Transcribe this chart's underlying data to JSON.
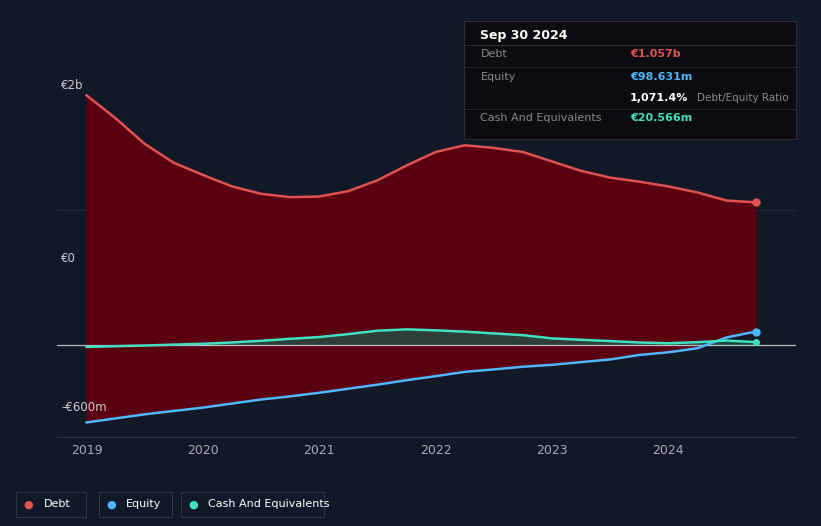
{
  "bg_color": "#111827",
  "plot_bg_color": "#111827",
  "title_box": {
    "date": "Sep 30 2024",
    "debt_label": "Debt",
    "debt_value": "€1.057b",
    "equity_label": "Equity",
    "equity_value": "€98.631m",
    "ratio_value": "1,071.4%",
    "ratio_label": "Debt/Equity Ratio",
    "cash_label": "Cash And Equivalents",
    "cash_value": "€20.566m"
  },
  "years": [
    2019.0,
    2019.25,
    2019.5,
    2019.75,
    2020.0,
    2020.25,
    2020.5,
    2020.75,
    2021.0,
    2021.25,
    2021.5,
    2021.75,
    2022.0,
    2022.25,
    2022.5,
    2022.75,
    2023.0,
    2023.25,
    2023.5,
    2023.75,
    2024.0,
    2024.25,
    2024.5,
    2024.75
  ],
  "debt": [
    1850,
    1680,
    1490,
    1350,
    1260,
    1175,
    1120,
    1095,
    1100,
    1140,
    1220,
    1330,
    1430,
    1480,
    1460,
    1430,
    1360,
    1290,
    1240,
    1210,
    1175,
    1130,
    1070,
    1057
  ],
  "equity": [
    -575,
    -545,
    -515,
    -490,
    -465,
    -435,
    -405,
    -382,
    -355,
    -325,
    -295,
    -262,
    -232,
    -200,
    -182,
    -162,
    -148,
    -128,
    -108,
    -75,
    -55,
    -25,
    55,
    98.631
  ],
  "cash": [
    -15,
    -10,
    -5,
    2,
    8,
    18,
    30,
    45,
    58,
    80,
    105,
    115,
    108,
    98,
    85,
    72,
    48,
    38,
    28,
    18,
    12,
    20,
    32,
    20.566
  ],
  "debt_color": "#e05252",
  "equity_color": "#4db8ff",
  "cash_color": "#40e0c0",
  "fill_color": "#5a0010",
  "zero_line_color": "#cccccc",
  "grid_color": "#2a2a3a",
  "y2b_label": "€2b",
  "y0_label": "€0",
  "yn600_label": "-€600m",
  "ylim": [
    -680,
    2050
  ],
  "xlim": [
    2018.75,
    2025.1
  ]
}
